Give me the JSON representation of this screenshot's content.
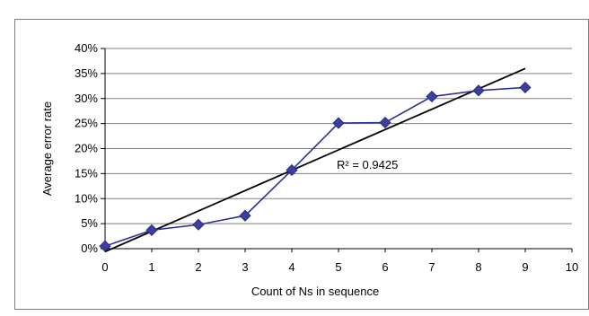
{
  "chart_data": {
    "type": "line",
    "title": "",
    "xlabel": "Count of Ns in sequence",
    "ylabel": "Average error rate",
    "x": [
      0,
      1,
      2,
      3,
      4,
      5,
      6,
      7,
      8,
      9
    ],
    "series": [
      {
        "values": [
          0.5,
          3.7,
          4.8,
          6.6,
          15.7,
          25.1,
          25.2,
          30.4,
          31.6,
          32.2
        ]
      }
    ],
    "trendline": {
      "type": "linear",
      "x": [
        0,
        9
      ],
      "y": [
        -0.6,
        36.0
      ],
      "label": "R² = 0.9425"
    },
    "xlim": [
      0,
      10
    ],
    "ylim": [
      0,
      40
    ],
    "x_ticks": [
      "0",
      "1",
      "2",
      "3",
      "4",
      "5",
      "6",
      "7",
      "8",
      "9",
      "10"
    ],
    "y_ticks": [
      "0%",
      "5%",
      "10%",
      "15%",
      "20%",
      "25%",
      "30%",
      "35%",
      "40%"
    ],
    "grid": true,
    "legend": "none",
    "colors": {
      "series": "#2e3192",
      "marker": "#3b3f9f",
      "trendline": "#000000",
      "grid": "#808080"
    }
  }
}
